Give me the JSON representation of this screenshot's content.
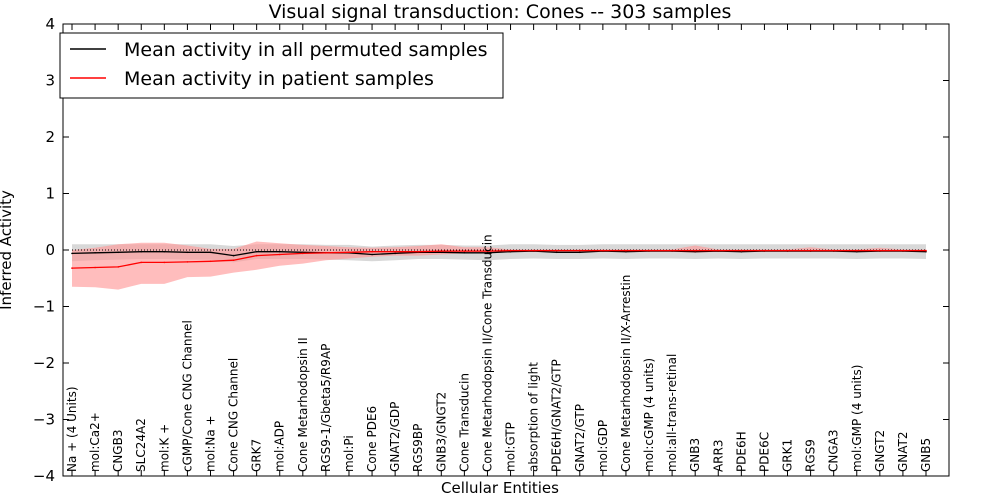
{
  "chart_data": {
    "type": "line",
    "title": "Visual signal transduction: Cones -- 303 samples",
    "xlabel": "Cellular Entities",
    "ylabel": "Inferred Activity",
    "ylim": [
      -4,
      4
    ],
    "yticks": [
      -4,
      -3,
      -2,
      -1,
      0,
      1,
      2,
      3,
      4
    ],
    "ytick_labels": [
      "−4",
      "−3",
      "−2",
      "−1",
      "0",
      "1",
      "2",
      "3",
      "4"
    ],
    "grid": false,
    "legend_position": "top-left",
    "categories": [
      "Na + (4 Units)",
      "mol:Ca2+",
      "CNGB3",
      "SLC24A2",
      "mol:K +",
      "cGMP/Cone CNG Channel",
      "mol:Na +",
      "Cone CNG Channel",
      "GRK7",
      "mol:ADP",
      "Cone Metarhodopsin II",
      "RGS9-1/Gbeta5/R9AP",
      "mol:Pi",
      "Cone PDE6",
      "GNAT2/GDP",
      "RGS9BP",
      "GNB3/GNGT2",
      "Cone Transducin",
      "Cone Metarhodopsin II/Cone Transducin",
      "mol:GTP",
      "absorption of light",
      "PDE6H/GNAT2/GTP",
      "GNAT2/GTP",
      "mol:GDP",
      "Cone Metarhodopsin II/X-Arrestin",
      "mol:cGMP (4 units)",
      "mol:all-trans-retinal",
      "GNB3",
      "ARR3",
      "PDE6H",
      "PDE6C",
      "GRK1",
      "RGS9",
      "CNGA3",
      "mol:GMP (4 units)",
      "GNGT2",
      "GNAT2",
      "GNB5"
    ],
    "series": [
      {
        "name": "Mean activity in all permuted samples",
        "color": "#000000",
        "band_color": "#c8c8c8",
        "values": [
          -0.06,
          -0.05,
          -0.04,
          -0.03,
          -0.03,
          -0.04,
          -0.04,
          -0.1,
          -0.03,
          -0.03,
          -0.04,
          -0.05,
          -0.05,
          -0.08,
          -0.06,
          -0.04,
          -0.04,
          -0.05,
          -0.05,
          -0.03,
          -0.02,
          -0.04,
          -0.04,
          -0.02,
          -0.03,
          -0.02,
          -0.02,
          -0.03,
          -0.02,
          -0.03,
          -0.02,
          -0.02,
          -0.02,
          -0.02,
          -0.03,
          -0.02,
          -0.02,
          -0.03
        ],
        "lower": [
          -0.2,
          -0.18,
          -0.17,
          -0.16,
          -0.16,
          -0.17,
          -0.17,
          -0.22,
          -0.16,
          -0.16,
          -0.16,
          -0.17,
          -0.18,
          -0.2,
          -0.18,
          -0.16,
          -0.16,
          -0.17,
          -0.18,
          -0.16,
          -0.15,
          -0.16,
          -0.16,
          -0.15,
          -0.16,
          -0.15,
          -0.15,
          -0.16,
          -0.15,
          -0.16,
          -0.15,
          -0.15,
          -0.15,
          -0.15,
          -0.16,
          -0.15,
          -0.15,
          -0.16
        ],
        "upper": [
          0.1,
          0.1,
          0.1,
          0.1,
          0.1,
          0.1,
          0.1,
          0.07,
          0.1,
          0.1,
          0.1,
          0.09,
          0.09,
          0.06,
          0.08,
          0.09,
          0.09,
          0.08,
          0.08,
          0.1,
          0.1,
          0.09,
          0.09,
          0.1,
          0.1,
          0.1,
          0.1,
          0.1,
          0.1,
          0.1,
          0.1,
          0.1,
          0.1,
          0.1,
          0.1,
          0.1,
          0.1,
          0.1
        ]
      },
      {
        "name": "Mean activity in patient samples",
        "color": "#ff0000",
        "band_color": "#ff9999",
        "values": [
          -0.32,
          -0.31,
          -0.3,
          -0.22,
          -0.22,
          -0.21,
          -0.2,
          -0.18,
          -0.1,
          -0.08,
          -0.06,
          -0.05,
          -0.04,
          -0.03,
          -0.03,
          -0.03,
          -0.02,
          -0.02,
          -0.02,
          -0.01,
          -0.01,
          -0.01,
          -0.01,
          -0.01,
          -0.01,
          -0.01,
          -0.01,
          -0.01,
          -0.01,
          -0.01,
          -0.01,
          -0.01,
          -0.01,
          -0.01,
          -0.01,
          -0.01,
          -0.01,
          -0.01
        ],
        "lower": [
          -0.65,
          -0.66,
          -0.7,
          -0.6,
          -0.6,
          -0.48,
          -0.47,
          -0.4,
          -0.35,
          -0.28,
          -0.24,
          -0.18,
          -0.15,
          -0.12,
          -0.1,
          -0.1,
          -0.08,
          -0.06,
          -0.05,
          -0.03,
          -0.03,
          -0.03,
          -0.03,
          -0.03,
          -0.03,
          -0.03,
          -0.03,
          -0.05,
          -0.03,
          -0.03,
          -0.03,
          -0.03,
          -0.03,
          -0.03,
          -0.03,
          -0.03,
          -0.03,
          -0.03
        ],
        "upper": [
          0.0,
          0.04,
          0.1,
          0.13,
          0.13,
          0.08,
          0.02,
          0.02,
          0.15,
          0.12,
          0.09,
          0.07,
          0.05,
          0.04,
          0.05,
          0.07,
          0.1,
          0.05,
          0.05,
          0.01,
          0.01,
          0.01,
          0.01,
          0.01,
          0.01,
          0.01,
          0.01,
          0.08,
          0.01,
          0.01,
          0.01,
          0.01,
          0.05,
          0.01,
          0.01,
          0.04,
          0.01,
          0.01
        ]
      }
    ],
    "reference_line": 0
  }
}
